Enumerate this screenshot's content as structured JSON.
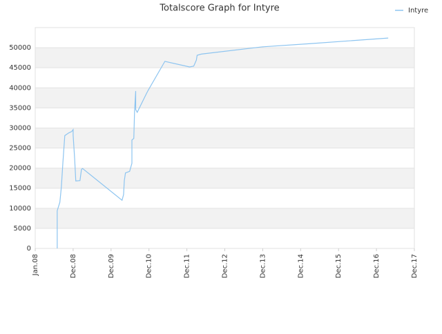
{
  "chart_data": {
    "type": "line",
    "title": "Totalscore Graph for Intyre",
    "x": [
      0.58,
      0.58,
      0.62,
      0.65,
      0.69,
      0.73,
      0.78,
      0.89,
      0.96,
      1.0,
      1.0,
      1.04,
      1.07,
      1.18,
      1.22,
      1.25,
      2.29,
      2.33,
      2.35,
      2.38,
      2.49,
      2.55,
      2.55,
      2.6,
      2.62,
      2.65,
      2.65,
      2.69,
      2.93,
      2.98,
      3.42,
      4.07,
      4.18,
      4.25,
      4.27,
      4.38,
      5.98,
      7.25,
      9.31
    ],
    "series": [
      {
        "name": "Intyre",
        "color": "#8cc4f0",
        "values": [
          0,
          9400,
          10600,
          11500,
          15400,
          21400,
          28100,
          28800,
          29100,
          29600,
          28200,
          22300,
          16800,
          16900,
          19700,
          19900,
          12000,
          13400,
          16900,
          18800,
          19200,
          21200,
          27000,
          27400,
          34200,
          39200,
          34600,
          33900,
          38500,
          39400,
          46600,
          45200,
          45400,
          46900,
          48100,
          48400,
          50200,
          51000,
          52400
        ]
      }
    ],
    "xlim": [
      0,
      10
    ],
    "xticks": [
      {
        "value": 0,
        "label": "Jan.08"
      },
      {
        "value": 1,
        "label": "Dec.08"
      },
      {
        "value": 2,
        "label": "Dec.09"
      },
      {
        "value": 3,
        "label": "Dec.10"
      },
      {
        "value": 4,
        "label": "Dec.11"
      },
      {
        "value": 5,
        "label": "Dec.12"
      },
      {
        "value": 6,
        "label": "Dec.13"
      },
      {
        "value": 7,
        "label": "Dec.14"
      },
      {
        "value": 8,
        "label": "Dec.15"
      },
      {
        "value": 9,
        "label": "Dec.16"
      },
      {
        "value": 10,
        "label": "Dec.17"
      }
    ],
    "ylim": [
      0,
      55000
    ],
    "yticks": [
      0,
      5000,
      10000,
      15000,
      20000,
      25000,
      30000,
      35000,
      40000,
      45000,
      50000
    ],
    "grid": true,
    "legend": "top-right"
  }
}
